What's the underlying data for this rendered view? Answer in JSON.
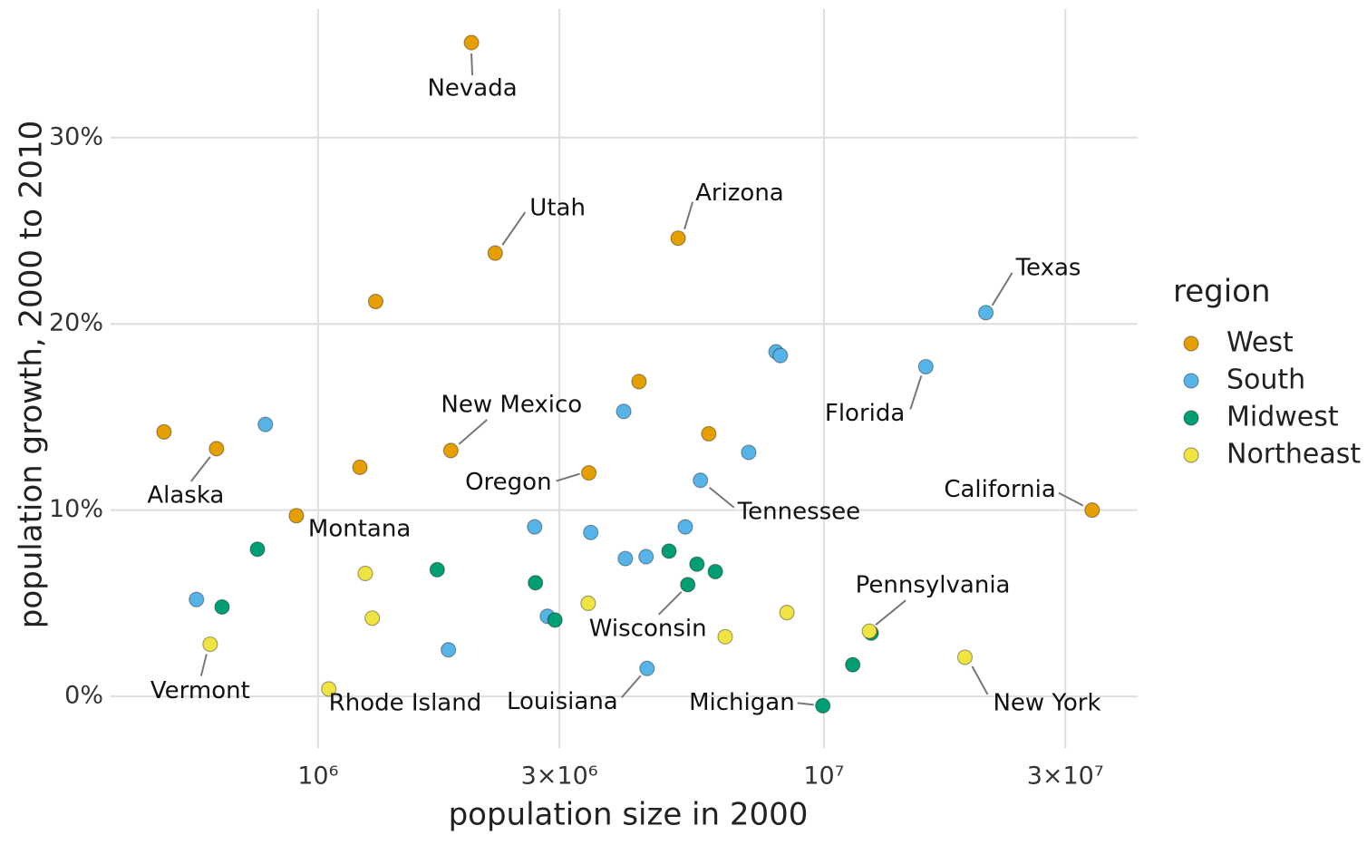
{
  "chart_data": {
    "type": "scatter",
    "x_label": "population size in 2000",
    "y_label": "population growth, 2000 to 2010",
    "legend_title": "region",
    "x_scale": "log",
    "xlim": [
      389000,
      41700000
    ],
    "xticks": [
      {
        "value": 1000000,
        "label": "10⁶"
      },
      {
        "value": 3000000,
        "label": "3×10⁶"
      },
      {
        "value": 10000000,
        "label": "10⁷"
      },
      {
        "value": 30000000,
        "label": "3×10⁷"
      }
    ],
    "ylim": [
      -2.77,
      36.9
    ],
    "yticks": [
      {
        "value": 0,
        "label": "0%"
      },
      {
        "value": 10,
        "label": "10%"
      },
      {
        "value": 20,
        "label": "20%"
      },
      {
        "value": 30,
        "label": "30%"
      }
    ],
    "grid": true,
    "legend": "right",
    "series": [
      {
        "name": "West",
        "color": "#E69F00",
        "x": [
          2010000,
          2240000,
          5150000,
          1300000,
          4310000,
          5920000,
          496000,
          630000,
          1210000,
          1830000,
          3430000,
          33900000,
          906000
        ],
        "values": [
          35.1,
          23.8,
          24.6,
          21.2,
          16.9,
          14.1,
          14.2,
          13.3,
          12.3,
          13.2,
          12.0,
          10.0,
          9.7
        ],
        "labels": [
          "Nevada",
          "Utah",
          "Arizona",
          null,
          null,
          null,
          null,
          "Alaska",
          null,
          "New Mexico",
          "Oregon",
          "California",
          "Montana"
        ]
      },
      {
        "name": "South",
        "color": "#56B4E9",
        "x": [
          20900000,
          8040000,
          8200000,
          15900000,
          4020000,
          787000,
          7100000,
          5700000,
          2680000,
          5320000,
          3460000,
          4050000,
          4450000,
          575000,
          2840000,
          1810000,
          4470000
        ],
        "values": [
          20.6,
          18.5,
          18.3,
          17.7,
          15.3,
          14.6,
          13.1,
          11.6,
          9.1,
          9.1,
          8.8,
          7.4,
          7.5,
          5.2,
          4.3,
          2.5,
          1.5
        ],
        "labels": [
          "Texas",
          null,
          null,
          "Florida",
          null,
          null,
          null,
          "Tennessee",
          null,
          null,
          null,
          null,
          null,
          null,
          null,
          null,
          "Louisiana"
        ]
      },
      {
        "name": "Midwest",
        "color": "#009E73",
        "x": [
          759000,
          646000,
          1720000,
          2690000,
          2940000,
          4940000,
          5610000,
          6100000,
          5380000,
          12400000,
          11400000,
          9950000
        ],
        "values": [
          7.9,
          4.8,
          6.8,
          6.1,
          4.1,
          7.8,
          7.1,
          6.7,
          6.0,
          3.4,
          1.7,
          -0.5
        ],
        "labels": [
          null,
          null,
          null,
          null,
          null,
          null,
          null,
          null,
          "Wisconsin",
          null,
          null,
          "Michigan"
        ]
      },
      {
        "name": "Northeast",
        "color": "#F0E442",
        "x": [
          1240000,
          1280000,
          612000,
          1050000,
          3420000,
          6380000,
          8450000,
          12300000,
          19000000
        ],
        "values": [
          6.6,
          4.2,
          2.8,
          0.4,
          5.0,
          3.2,
          4.5,
          3.5,
          2.1
        ],
        "labels": [
          null,
          null,
          "Vermont",
          "Rhode Island",
          null,
          null,
          null,
          "Pennsylvania",
          "New York"
        ]
      }
    ]
  }
}
